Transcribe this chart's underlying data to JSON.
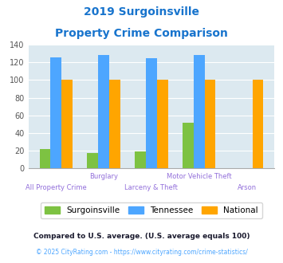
{
  "title_line1": "2019 Surgoinsville",
  "title_line2": "Property Crime Comparison",
  "title_color": "#1874CD",
  "surgoinsville": [
    22,
    17,
    19,
    52,
    0
  ],
  "tennessee": [
    126,
    128,
    125,
    128,
    0
  ],
  "national": [
    100,
    100,
    100,
    100,
    100
  ],
  "color_surgoinsville": "#7dc242",
  "color_tennessee": "#4da6ff",
  "color_national": "#ffa500",
  "ylim": [
    0,
    140
  ],
  "yticks": [
    0,
    20,
    40,
    60,
    80,
    100,
    120,
    140
  ],
  "plot_bg": "#dce9f0",
  "footnote1": "Compared to U.S. average. (U.S. average equals 100)",
  "footnote2": "© 2025 CityRating.com - https://www.cityrating.com/crime-statistics/",
  "footnote1_color": "#1a1a2e",
  "footnote2_color": "#4da6ff",
  "legend_labels": [
    "Surgoinsville",
    "Tennessee",
    "National"
  ],
  "xlabel_color": "#9370DB",
  "label_top": [
    "",
    "Burglary",
    "",
    "Motor Vehicle Theft",
    ""
  ],
  "label_bot": [
    "All Property Crime",
    "",
    "Larceny & Theft",
    "",
    "Arson"
  ]
}
